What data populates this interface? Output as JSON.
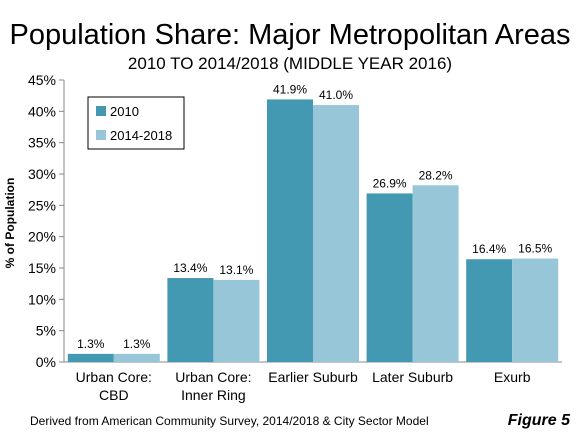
{
  "chart_data": {
    "type": "bar",
    "title": "Population Share: Major Metropolitan Areas",
    "subtitle": "2010 TO 2014/2018 (MIDDLE YEAR 2016)",
    "ylabel": "% of Population",
    "xlabel": "",
    "ylim": [
      0,
      45
    ],
    "yticks": [
      "0%",
      "5%",
      "10%",
      "15%",
      "20%",
      "25%",
      "30%",
      "35%",
      "40%",
      "45%"
    ],
    "ytick_values": [
      0,
      5,
      10,
      15,
      20,
      25,
      30,
      35,
      40,
      45
    ],
    "categories": [
      [
        "Urban Core:",
        "CBD"
      ],
      [
        "Urban Core:",
        "Inner Ring"
      ],
      [
        "Earlier Suburb"
      ],
      [
        "Later Suburb"
      ],
      [
        "Exurb"
      ]
    ],
    "series": [
      {
        "name": "2010",
        "color": "#4399B1",
        "values": [
          1.3,
          13.4,
          41.9,
          26.9,
          16.4
        ],
        "labels": [
          "1.3%",
          "13.4%",
          "41.9%",
          "26.9%",
          "16.4%"
        ]
      },
      {
        "name": "2014-2018",
        "color": "#96C6D8",
        "values": [
          1.3,
          13.1,
          41.0,
          28.2,
          16.5
        ],
        "labels": [
          "1.3%",
          "13.1%",
          "41.0%",
          "28.2%",
          "16.5%"
        ]
      }
    ],
    "legend_position": "top-left",
    "grid": false
  },
  "source": "Derived from American Community Survey, 2014/2018 & City Sector Model",
  "figure_label": "Figure 5"
}
